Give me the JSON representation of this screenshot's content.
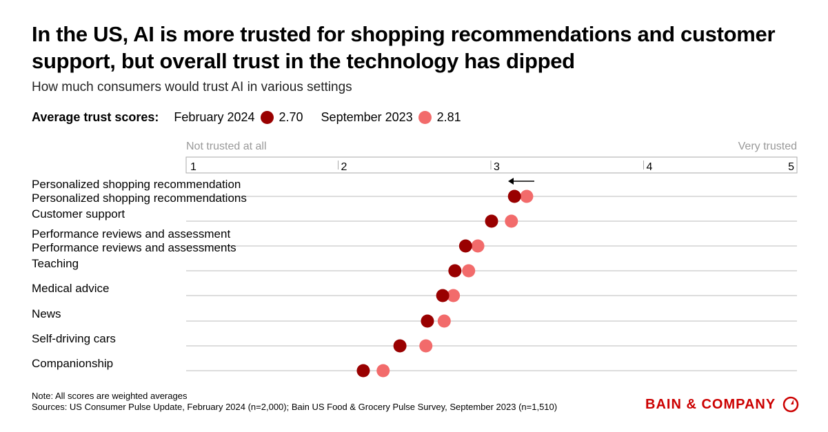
{
  "title": "In the US, AI is more trusted for shopping recommendations and customer support, but overall trust in the technology has dipped",
  "subtitle": "How much consumers would trust AI in various settings",
  "legend": {
    "label": "Average trust scores:",
    "series": [
      {
        "name": "February 2024",
        "avg": "2.70",
        "color": "#990000"
      },
      {
        "name": "September 2023",
        "avg": "2.81",
        "color": "#f26b6b"
      }
    ]
  },
  "note": "Note: All scores are weighted averages",
  "sources": "Sources: US Consumer Pulse Update, February 2024 (n=2,000); Bain US Food & Grocery Pulse Survey, September 2023 (n=1,510)",
  "logo": "BAIN & COMPANY",
  "chart_data": {
    "type": "dot",
    "scale_low_label": "Not trusted at all",
    "scale_high_label": "Very trusted",
    "xlim": [
      1,
      5
    ],
    "ticks": [
      "1",
      "2",
      "3",
      "4",
      "5"
    ],
    "categories": [
      "Personalized shopping recommendations",
      "Customer support",
      "Performance reviews and assessments",
      "Teaching",
      "Medical advice",
      "News",
      "Self-driving cars",
      "Companionship"
    ],
    "series": [
      {
        "name": "February 2024",
        "color": "#990000",
        "values": [
          3.15,
          3.0,
          2.83,
          2.76,
          2.68,
          2.58,
          2.4,
          2.16
        ]
      },
      {
        "name": "September 2023",
        "color": "#f26b6b",
        "values": [
          3.23,
          3.13,
          2.91,
          2.85,
          2.75,
          2.69,
          2.57,
          2.29
        ]
      }
    ],
    "annotation": "arrow pointing left (decline)"
  }
}
